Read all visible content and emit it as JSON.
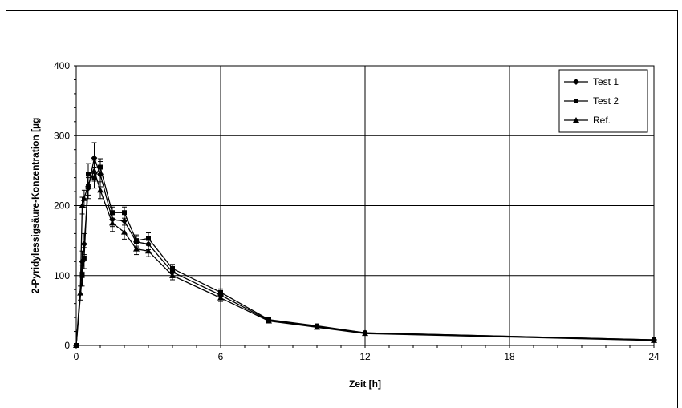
{
  "chart_data": {
    "type": "line",
    "xlabel": "Zeit [h]",
    "ylabel": "2-Pyridylessigsäure-Konzentration [µg",
    "xlim": [
      0,
      24
    ],
    "ylim": [
      0,
      400
    ],
    "xticks": [
      0,
      6,
      12,
      18,
      24
    ],
    "yticks": [
      0,
      100,
      200,
      300,
      400
    ],
    "grid": true,
    "legend_position": "top-right",
    "series": [
      {
        "name": "Test 1",
        "marker": "diamond",
        "points": [
          [
            0,
            0
          ],
          [
            0.25,
            120
          ],
          [
            0.33,
            145
          ],
          [
            0.5,
            225
          ],
          [
            0.75,
            268
          ],
          [
            1,
            245
          ],
          [
            1.5,
            180
          ],
          [
            2,
            178
          ],
          [
            2.5,
            148
          ],
          [
            3,
            145
          ],
          [
            4,
            105
          ],
          [
            6,
            72
          ],
          [
            8,
            36
          ],
          [
            10,
            27
          ],
          [
            12,
            18
          ],
          [
            24,
            8
          ]
        ],
        "errors": [
          0,
          15,
          15,
          15,
          22,
          18,
          10,
          10,
          8,
          8,
          8,
          6,
          2,
          2,
          2,
          1
        ]
      },
      {
        "name": "Test 2",
        "marker": "square",
        "points": [
          [
            0,
            0
          ],
          [
            0.25,
            100
          ],
          [
            0.33,
            125
          ],
          [
            0.5,
            245
          ],
          [
            0.75,
            240
          ],
          [
            1,
            255
          ],
          [
            1.5,
            190
          ],
          [
            2,
            190
          ],
          [
            2.5,
            150
          ],
          [
            3,
            153
          ],
          [
            4,
            110
          ],
          [
            6,
            76
          ],
          [
            8,
            37
          ],
          [
            10,
            28
          ],
          [
            12,
            18
          ],
          [
            24,
            8
          ]
        ],
        "errors": [
          0,
          15,
          15,
          15,
          15,
          12,
          8,
          8,
          8,
          8,
          6,
          5,
          2,
          2,
          2,
          1
        ]
      },
      {
        "name": "Ref.",
        "marker": "triangle",
        "points": [
          [
            0,
            0
          ],
          [
            0.17,
            75
          ],
          [
            0.25,
            200
          ],
          [
            0.33,
            210
          ],
          [
            0.5,
            230
          ],
          [
            0.75,
            250
          ],
          [
            1,
            222
          ],
          [
            1.5,
            175
          ],
          [
            2,
            162
          ],
          [
            2.5,
            138
          ],
          [
            3,
            135
          ],
          [
            4,
            100
          ],
          [
            6,
            68
          ],
          [
            8,
            35
          ],
          [
            10,
            26
          ],
          [
            12,
            17
          ],
          [
            24,
            7
          ]
        ],
        "errors": [
          0,
          10,
          12,
          12,
          15,
          15,
          12,
          12,
          10,
          8,
          8,
          6,
          5,
          2,
          2,
          2,
          1
        ]
      }
    ]
  }
}
